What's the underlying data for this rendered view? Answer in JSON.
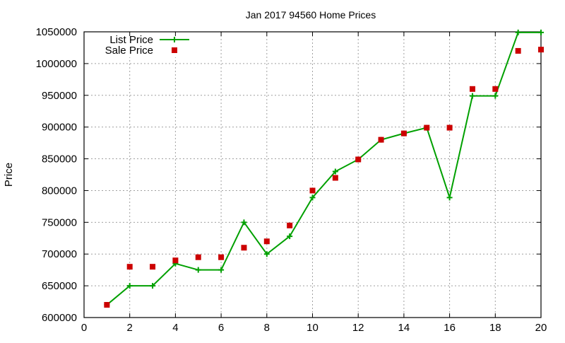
{
  "chart_data": {
    "type": "line",
    "title": "Jan 2017 94560 Home Prices",
    "xlabel": "",
    "ylabel": "Price",
    "xlim": [
      0,
      20
    ],
    "ylim": [
      600000,
      1050000
    ],
    "x_ticks": [
      0,
      2,
      4,
      6,
      8,
      10,
      12,
      14,
      16,
      18,
      20
    ],
    "y_ticks": [
      600000,
      650000,
      700000,
      750000,
      800000,
      850000,
      900000,
      950000,
      1000000,
      1050000
    ],
    "grid": true,
    "legend_position": "top-left",
    "x": [
      1,
      2,
      3,
      4,
      5,
      6,
      7,
      8,
      9,
      10,
      11,
      12,
      13,
      14,
      15,
      16,
      17,
      18,
      19,
      20
    ],
    "series": [
      {
        "name": "List Price",
        "style": "linespoints",
        "marker": "plus",
        "color": "#00a000",
        "values": [
          620000,
          650000,
          650000,
          685000,
          675000,
          675000,
          750000,
          700000,
          728000,
          789000,
          830000,
          849000,
          880000,
          890000,
          899000,
          789000,
          949000,
          949000,
          1049000,
          1049000
        ]
      },
      {
        "name": "Sale Price",
        "style": "points",
        "marker": "square",
        "color": "#cc0000",
        "values": [
          620000,
          680000,
          680000,
          690000,
          695000,
          695000,
          710000,
          720000,
          745000,
          800000,
          820000,
          849000,
          880000,
          890000,
          899000,
          899000,
          960000,
          960000,
          1020000,
          1022000
        ]
      }
    ]
  }
}
